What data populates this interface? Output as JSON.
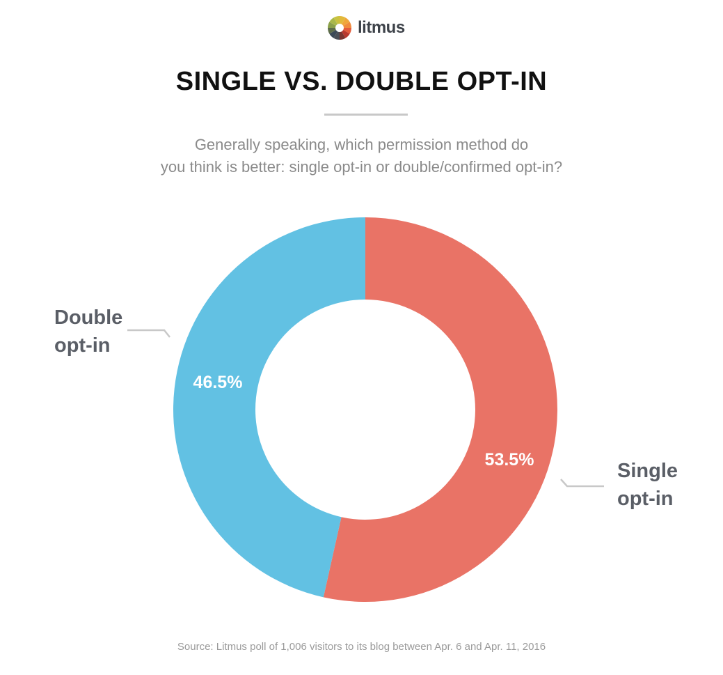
{
  "logo": {
    "text": "litmus",
    "colors": [
      "#e2b93b",
      "#efa63a",
      "#f08a3c",
      "#e35b3b",
      "#b8382e",
      "#7a3530",
      "#4a4f57",
      "#3c4a57",
      "#5e6d4a",
      "#8aa04a",
      "#a9b84a",
      "#c9c240"
    ]
  },
  "title": "SINGLE VS. DOUBLE OPT-IN",
  "subtitle": [
    "Generally speaking, which permission method do",
    "you think is better: single opt-in or double/confirmed opt-in?"
  ],
  "source": "Source: Litmus poll of 1,006 visitors to its blog between Apr. 6 and Apr. 11, 2016",
  "chart_data": {
    "type": "pie",
    "donut": true,
    "slices": [
      {
        "label": "Single opt-in",
        "label_lines": [
          "Single",
          "opt-in"
        ],
        "value": 53.5,
        "value_label": "53.5%",
        "color": "#e97366"
      },
      {
        "label": "Double opt-in",
        "label_lines": [
          "Double",
          "opt-in"
        ],
        "value": 46.5,
        "value_label": "46.5%",
        "color": "#62c1e3"
      }
    ]
  }
}
